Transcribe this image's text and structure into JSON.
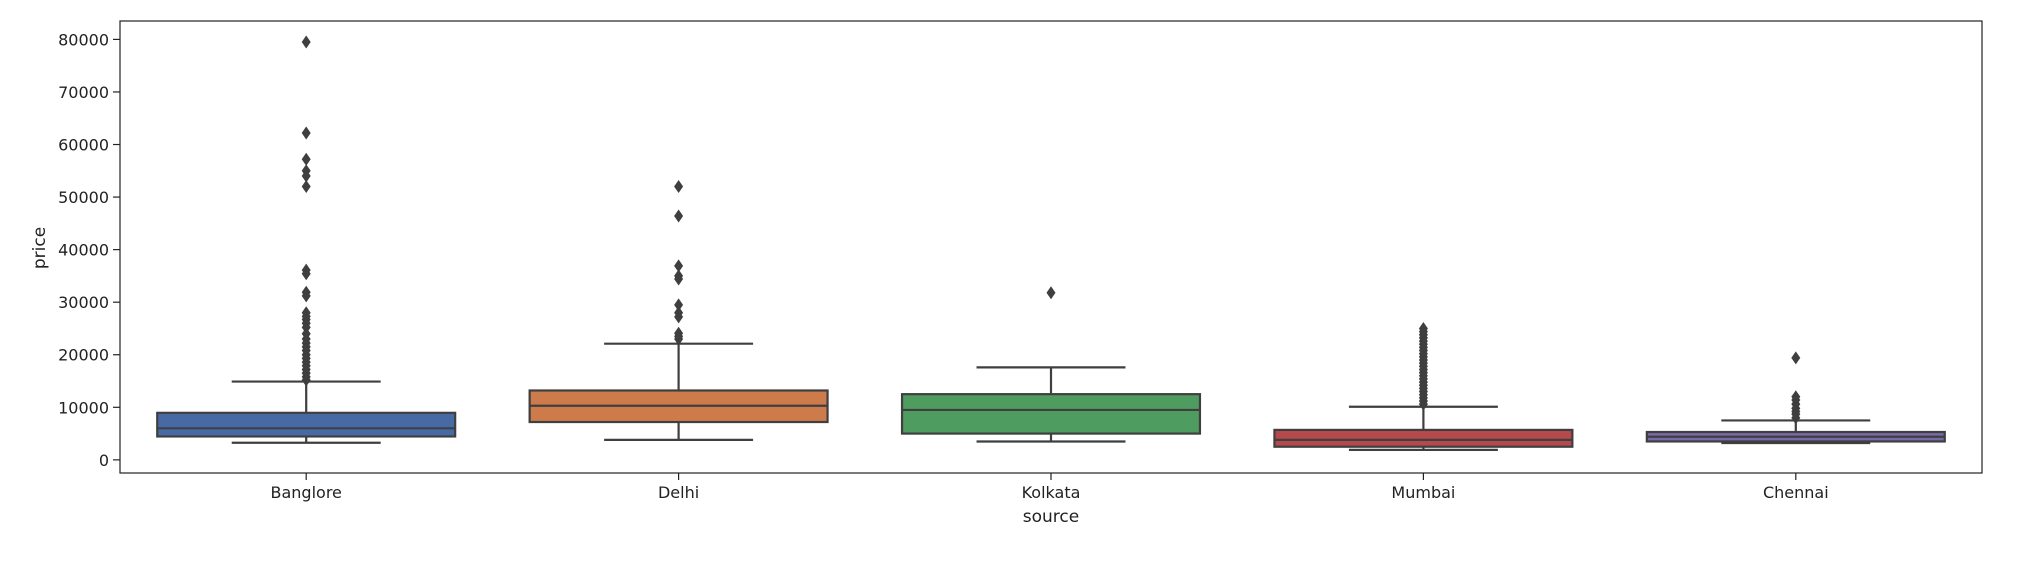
{
  "chart_data": {
    "type": "box",
    "title": "",
    "xlabel": "source",
    "ylabel": "price",
    "ylim": [
      -2500,
      83500
    ],
    "yticks": [
      0,
      10000,
      20000,
      30000,
      40000,
      50000,
      60000,
      70000,
      80000
    ],
    "grid": false,
    "categories": [
      "Banglore",
      "Delhi",
      "Kolkata",
      "Mumbai",
      "Chennai"
    ],
    "boxes": [
      {
        "category": "Banglore",
        "color": "#4c72b0",
        "whisker_low": 3250,
        "q1": 4450,
        "median": 6000,
        "q3": 8950,
        "whisker_high": 14900,
        "outliers": [
          79500,
          62200,
          57200,
          55000,
          54000,
          52000,
          36100,
          35400,
          31900,
          31200,
          28000,
          27300,
          26700,
          26000,
          25200,
          24000,
          23000,
          22200,
          21500,
          20800,
          20000,
          19300,
          18600,
          17900,
          17200,
          16500,
          15800,
          15200
        ]
      },
      {
        "category": "Delhi",
        "color": "#dd8452",
        "whisker_low": 3800,
        "q1": 7200,
        "median": 10300,
        "q3": 13200,
        "whisker_high": 22100,
        "outliers": [
          52000,
          46400,
          36900,
          35000,
          34400,
          29500,
          28000,
          27200,
          24100,
          23500,
          23000
        ]
      },
      {
        "category": "Kolkata",
        "color": "#55a868",
        "whisker_low": 3500,
        "q1": 5000,
        "median": 9500,
        "q3": 12500,
        "whisker_high": 17600,
        "outliers": [
          31800
        ]
      },
      {
        "category": "Mumbai",
        "color": "#c44e52",
        "whisker_low": 1900,
        "q1": 2500,
        "median": 3800,
        "q3": 5700,
        "whisker_high": 10100,
        "outliers": [
          25000,
          24400,
          23800,
          23200,
          22600,
          22000,
          21400,
          20800,
          20200,
          19600,
          19000,
          18400,
          17800,
          17200,
          16600,
          16000,
          15400,
          14800,
          14200,
          13600,
          13000,
          12400,
          11800,
          11200,
          10600
        ]
      },
      {
        "category": "Chennai",
        "color": "#8172b3",
        "whisker_low": 3200,
        "q1": 3500,
        "median": 4400,
        "q3": 5300,
        "whisker_high": 7500,
        "outliers": [
          19400,
          12000,
          11400,
          10600,
          9800,
          9200,
          8700,
          8000
        ]
      }
    ]
  }
}
